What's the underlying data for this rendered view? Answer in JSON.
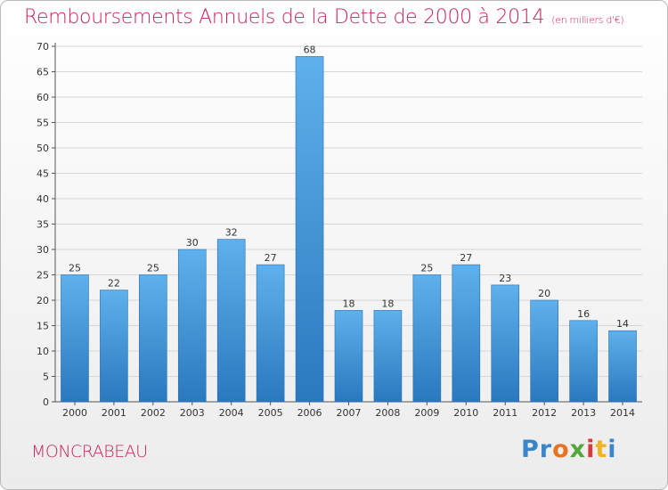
{
  "title": "Remboursements Annuels de la Dette de 2000 à 2014",
  "unit": "(en milliers d'€)",
  "commune": "MONCRABEAU",
  "logo": {
    "p1": "Pr",
    "p2": "o",
    "p3": "x",
    "p4": "i",
    "p5": "t",
    "p6": "i"
  },
  "colors": {
    "bar": "#4a9fe0",
    "title": "#c8215c"
  },
  "chart_data": {
    "type": "bar",
    "title": "Remboursements Annuels de la Dette de 2000 à 2014",
    "xlabel": "",
    "ylabel": "",
    "ylim": [
      0,
      70
    ],
    "yticks": [
      0,
      5,
      10,
      15,
      20,
      25,
      30,
      35,
      40,
      45,
      50,
      55,
      60,
      65,
      70
    ],
    "grid": true,
    "categories": [
      "2000",
      "2001",
      "2002",
      "2003",
      "2004",
      "2005",
      "2006",
      "2007",
      "2008",
      "2009",
      "2010",
      "2011",
      "2012",
      "2013",
      "2014"
    ],
    "values": [
      25,
      22,
      25,
      30,
      32,
      27,
      68,
      18,
      18,
      25,
      27,
      23,
      20,
      16,
      14
    ]
  }
}
